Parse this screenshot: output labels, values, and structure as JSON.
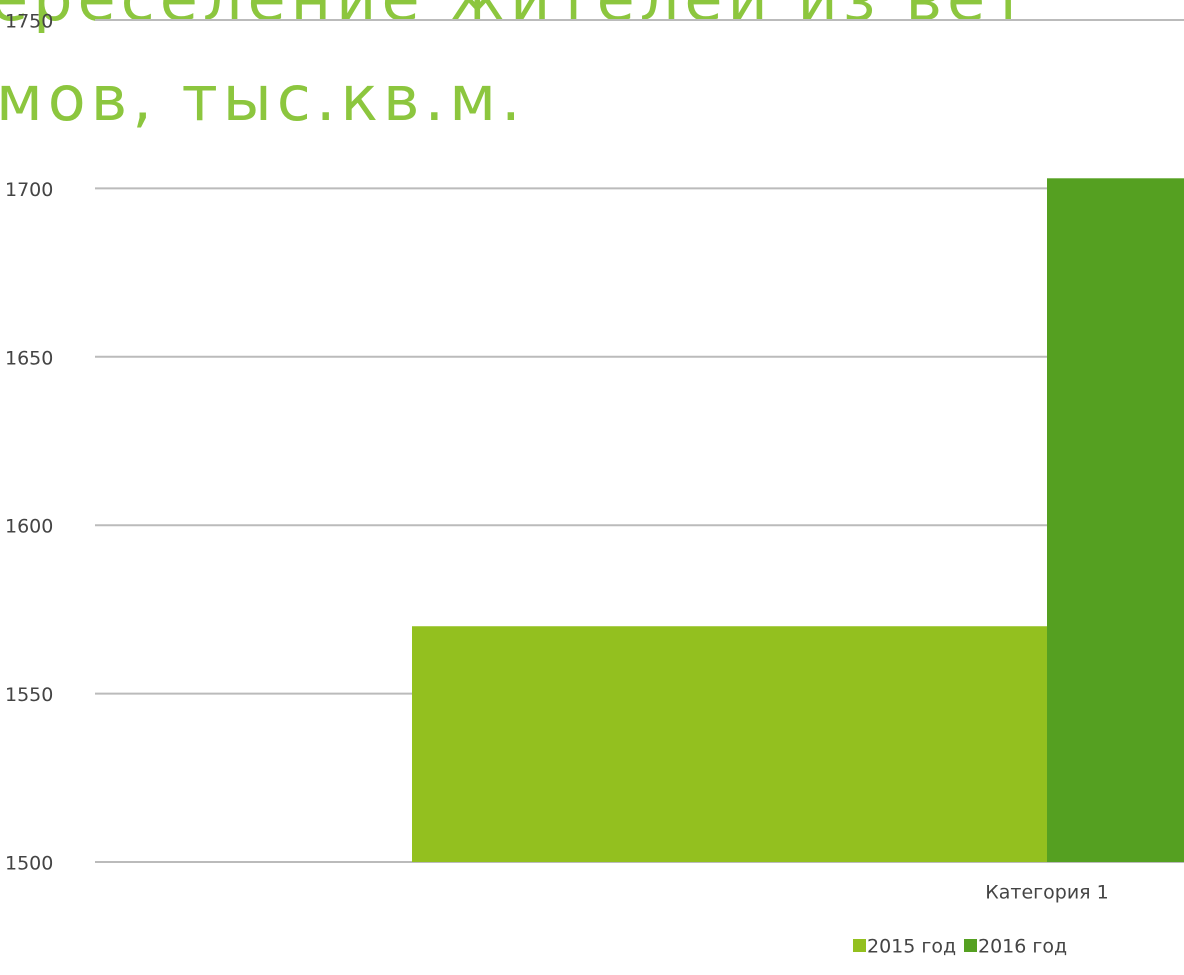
{
  "chart_data": {
    "type": "bar",
    "title_lines": [
      "ереселение жителей из вет",
      "мов, тыс.кв.м."
    ],
    "categories": [
      "Категория 1"
    ],
    "series": [
      {
        "name": "2015 год",
        "color": "#93c01f",
        "values": [
          1570
        ]
      },
      {
        "name": "2016 год",
        "color": "#55a021",
        "values": [
          1703
        ]
      }
    ],
    "ylim": [
      1500,
      1750
    ],
    "yticks": [
      1500,
      1550,
      1600,
      1650,
      1700,
      1750
    ],
    "grid": true,
    "legend": "bottom"
  }
}
